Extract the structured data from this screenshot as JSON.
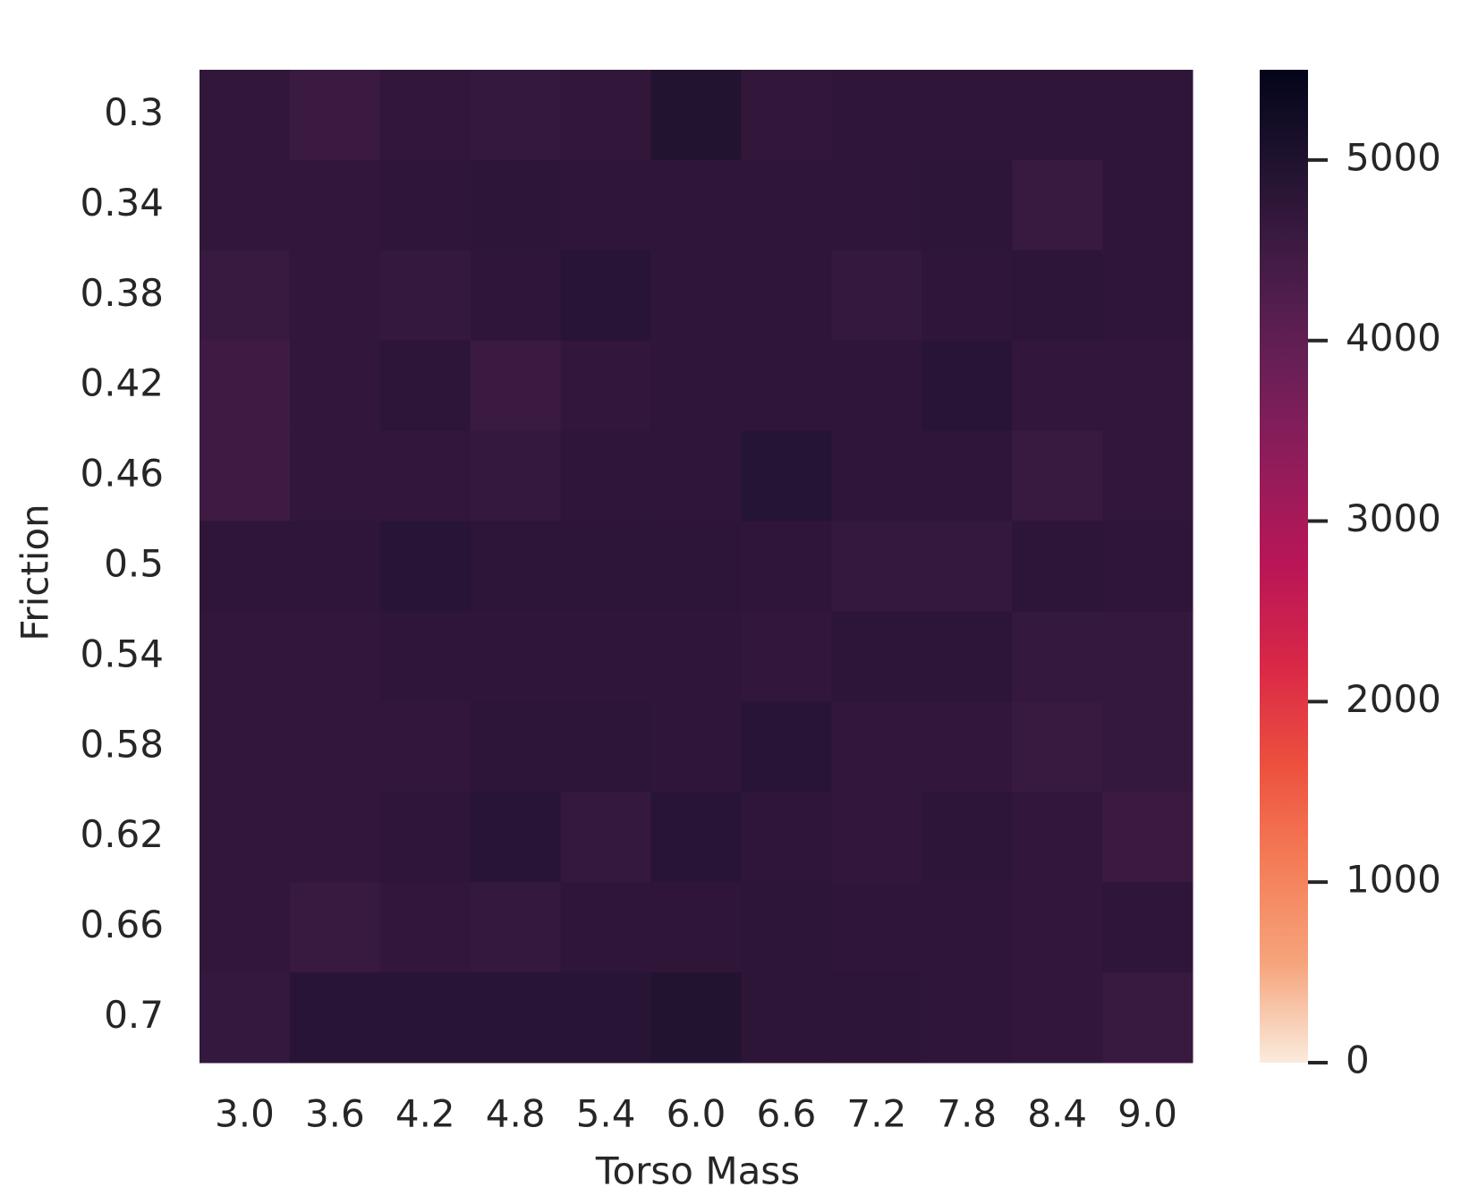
{
  "chart_data": {
    "type": "heatmap",
    "x_label": "Torso Mass",
    "y_label": "Friction",
    "x_categories": [
      "3.0",
      "3.6",
      "4.2",
      "4.8",
      "5.4",
      "6.0",
      "6.6",
      "7.2",
      "7.8",
      "8.4",
      "9.0"
    ],
    "y_categories": [
      "0.3",
      "0.34",
      "0.38",
      "0.42",
      "0.46",
      "0.5",
      "0.54",
      "0.58",
      "0.62",
      "0.66",
      "0.7"
    ],
    "values": [
      [
        4700,
        4550,
        4700,
        4650,
        4700,
        4950,
        4700,
        4750,
        4750,
        4750,
        4750
      ],
      [
        4700,
        4700,
        4750,
        4800,
        4750,
        4750,
        4750,
        4750,
        4800,
        4600,
        4750
      ],
      [
        4600,
        4700,
        4650,
        4750,
        4850,
        4750,
        4750,
        4650,
        4750,
        4800,
        4750
      ],
      [
        4500,
        4700,
        4800,
        4550,
        4700,
        4750,
        4750,
        4750,
        4850,
        4700,
        4700
      ],
      [
        4500,
        4700,
        4700,
        4650,
        4750,
        4750,
        4900,
        4750,
        4750,
        4600,
        4700
      ],
      [
        4750,
        4750,
        4850,
        4800,
        4800,
        4800,
        4750,
        4650,
        4650,
        4800,
        4750
      ],
      [
        4700,
        4700,
        4750,
        4750,
        4750,
        4750,
        4700,
        4800,
        4800,
        4650,
        4650
      ],
      [
        4700,
        4700,
        4700,
        4800,
        4800,
        4750,
        4850,
        4700,
        4700,
        4600,
        4650
      ],
      [
        4700,
        4700,
        4750,
        4850,
        4650,
        4850,
        4750,
        4700,
        4800,
        4700,
        4550
      ],
      [
        4700,
        4600,
        4700,
        4650,
        4750,
        4750,
        4800,
        4750,
        4750,
        4700,
        4750
      ],
      [
        4650,
        4850,
        4850,
        4850,
        4850,
        4950,
        4800,
        4800,
        4750,
        4700,
        4600
      ]
    ],
    "colormap": "rocket_r",
    "clim": [
      0,
      5500
    ],
    "cticks": [
      0,
      1000,
      2000,
      3000,
      4000,
      5000
    ]
  }
}
